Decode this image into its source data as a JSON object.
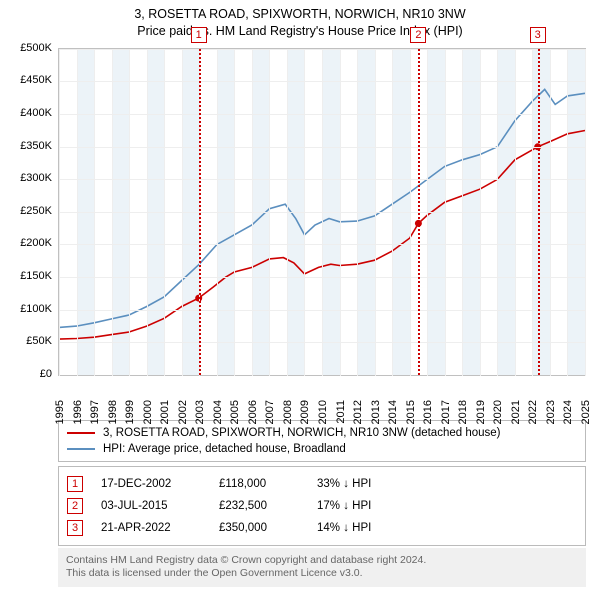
{
  "title_line1": "3, ROSETTA ROAD, SPIXWORTH, NORWICH, NR10 3NW",
  "title_line2": "Price paid vs. HM Land Registry's House Price Index (HPI)",
  "chart": {
    "type": "line",
    "background_color": "#ffffff",
    "grid_color": "#eeeeee",
    "border_color": "#c0c0c0",
    "band_color": "#eaf2f7",
    "ref_color": "#cc0000",
    "ylim": [
      0,
      500000
    ],
    "ytick_step": 50000,
    "yticks": [
      "£0",
      "£50K",
      "£100K",
      "£150K",
      "£200K",
      "£250K",
      "£300K",
      "£350K",
      "£400K",
      "£450K",
      "£500K"
    ],
    "x_years": [
      1995,
      1996,
      1997,
      1998,
      1999,
      2000,
      2001,
      2002,
      2003,
      2004,
      2005,
      2006,
      2007,
      2008,
      2009,
      2010,
      2011,
      2012,
      2013,
      2014,
      2015,
      2016,
      2017,
      2018,
      2019,
      2020,
      2021,
      2022,
      2023,
      2024,
      2025
    ],
    "bands": [
      [
        1996,
        1997
      ],
      [
        1998,
        1999
      ],
      [
        2000,
        2001
      ],
      [
        2002,
        2003
      ],
      [
        2004,
        2005
      ],
      [
        2006,
        2007
      ],
      [
        2008,
        2009
      ],
      [
        2010,
        2011
      ],
      [
        2012,
        2013
      ],
      [
        2014,
        2015
      ],
      [
        2016,
        2017
      ],
      [
        2018,
        2019
      ],
      [
        2020,
        2021
      ],
      [
        2022,
        2023
      ],
      [
        2024,
        2025
      ]
    ],
    "series": [
      {
        "name": "price_paid",
        "color": "#cc0000",
        "stroke_width": 1.6,
        "data": [
          [
            1995,
            55000
          ],
          [
            1996,
            56000
          ],
          [
            1997,
            58000
          ],
          [
            1998,
            62000
          ],
          [
            1999,
            66000
          ],
          [
            2000,
            75000
          ],
          [
            2001,
            87000
          ],
          [
            2002,
            105000
          ],
          [
            2002.97,
            118000
          ],
          [
            2003.8,
            135000
          ],
          [
            2004.5,
            150000
          ],
          [
            2005,
            158000
          ],
          [
            2006,
            165000
          ],
          [
            2007,
            178000
          ],
          [
            2007.8,
            180000
          ],
          [
            2008.4,
            172000
          ],
          [
            2009,
            155000
          ],
          [
            2009.8,
            165000
          ],
          [
            2010.5,
            170000
          ],
          [
            2011,
            168000
          ],
          [
            2012,
            170000
          ],
          [
            2013,
            176000
          ],
          [
            2014,
            190000
          ],
          [
            2015,
            210000
          ],
          [
            2015.5,
            232500
          ],
          [
            2016,
            245000
          ],
          [
            2017,
            265000
          ],
          [
            2018,
            275000
          ],
          [
            2019,
            285000
          ],
          [
            2020,
            300000
          ],
          [
            2021,
            330000
          ],
          [
            2022.3,
            350000
          ],
          [
            2023,
            358000
          ],
          [
            2024,
            370000
          ],
          [
            2025,
            375000
          ]
        ]
      },
      {
        "name": "hpi",
        "color": "#5b8fbf",
        "stroke_width": 1.6,
        "data": [
          [
            1995,
            73000
          ],
          [
            1996,
            75000
          ],
          [
            1997,
            80000
          ],
          [
            1998,
            86000
          ],
          [
            1999,
            92000
          ],
          [
            2000,
            105000
          ],
          [
            2001,
            120000
          ],
          [
            2002,
            145000
          ],
          [
            2003,
            170000
          ],
          [
            2004,
            200000
          ],
          [
            2005,
            215000
          ],
          [
            2006,
            230000
          ],
          [
            2007,
            255000
          ],
          [
            2007.9,
            262000
          ],
          [
            2008.5,
            240000
          ],
          [
            2009,
            215000
          ],
          [
            2009.6,
            230000
          ],
          [
            2010.4,
            240000
          ],
          [
            2011,
            235000
          ],
          [
            2012,
            236000
          ],
          [
            2013,
            244000
          ],
          [
            2014,
            262000
          ],
          [
            2015,
            280000
          ],
          [
            2016,
            300000
          ],
          [
            2017,
            320000
          ],
          [
            2018,
            330000
          ],
          [
            2019,
            338000
          ],
          [
            2020,
            350000
          ],
          [
            2021,
            390000
          ],
          [
            2022,
            420000
          ],
          [
            2022.7,
            438000
          ],
          [
            2023.3,
            415000
          ],
          [
            2024,
            428000
          ],
          [
            2025,
            432000
          ]
        ]
      }
    ],
    "transactions": [
      {
        "n": "1",
        "year": 2002.97,
        "price_val": 118000,
        "date": "17-DEC-2002",
        "price": "£118,000",
        "delta": "33% ↓ HPI"
      },
      {
        "n": "2",
        "year": 2015.5,
        "price_val": 232500,
        "date": "03-JUL-2015",
        "price": "£232,500",
        "delta": "17% ↓ HPI"
      },
      {
        "n": "3",
        "year": 2022.3,
        "price_val": 350000,
        "date": "21-APR-2022",
        "price": "£350,000",
        "delta": "14% ↓ HPI"
      }
    ]
  },
  "legend": {
    "series1_label": "3, ROSETTA ROAD, SPIXWORTH, NORWICH, NR10 3NW (detached house)",
    "series2_label": "HPI: Average price, detached house, Broadland",
    "series1_color": "#cc0000",
    "series2_color": "#5b8fbf"
  },
  "footnote_line1": "Contains HM Land Registry data © Crown copyright and database right 2024.",
  "footnote_line2": "This data is licensed under the Open Government Licence v3.0."
}
